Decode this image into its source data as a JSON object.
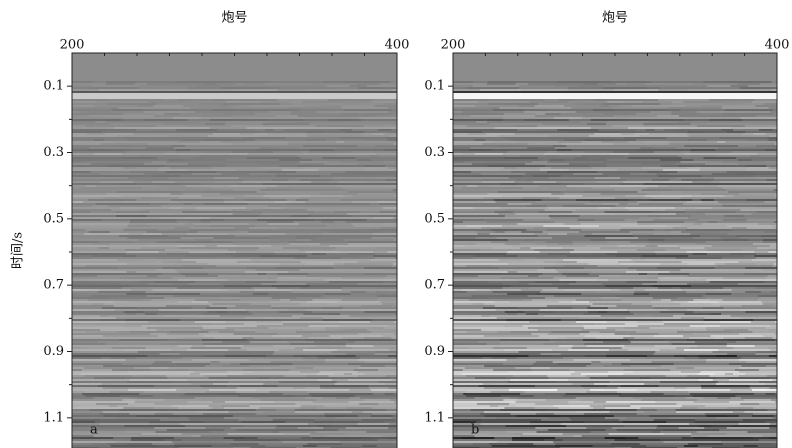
{
  "chart_data": [
    {
      "type": "image",
      "x_label": "炮号",
      "y_label": "时间/s",
      "panel_label": "a",
      "xlim": [
        200,
        400
      ],
      "xticks": [
        200,
        400
      ],
      "ylim": [
        0,
        1.2
      ],
      "yticks": [
        0.1,
        0.3,
        0.5,
        0.7,
        0.9,
        1.1
      ]
    },
    {
      "type": "image",
      "x_label": "炮号",
      "panel_label": "b",
      "xlim": [
        200,
        400
      ],
      "xticks": [
        200,
        400
      ],
      "ylim": [
        0,
        1.2
      ],
      "yticks": [
        0.1,
        0.3,
        0.5,
        0.7,
        0.9,
        1.1
      ]
    }
  ]
}
